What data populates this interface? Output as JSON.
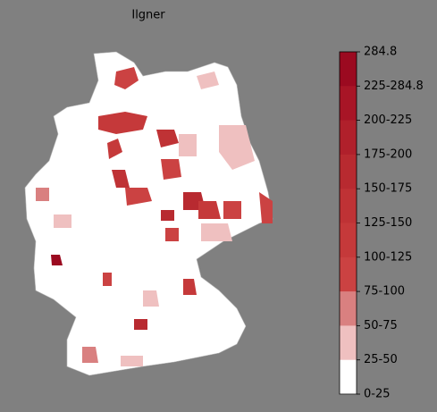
{
  "title": "Ilgner",
  "colorbar": {
    "labels": [
      "284.8",
      "225-284.8",
      "200-225",
      "175-200",
      "150-175",
      "125-150",
      "100-125",
      "75-100",
      "50-75",
      "25-50",
      "0-25"
    ],
    "colors": [
      "#9b0a20",
      "#a81526",
      "#b0202b",
      "#b82a30",
      "#bf3235",
      "#c5393a",
      "#cb4242",
      "#d98080",
      "#efc0c0",
      "#ffffff"
    ]
  }
}
